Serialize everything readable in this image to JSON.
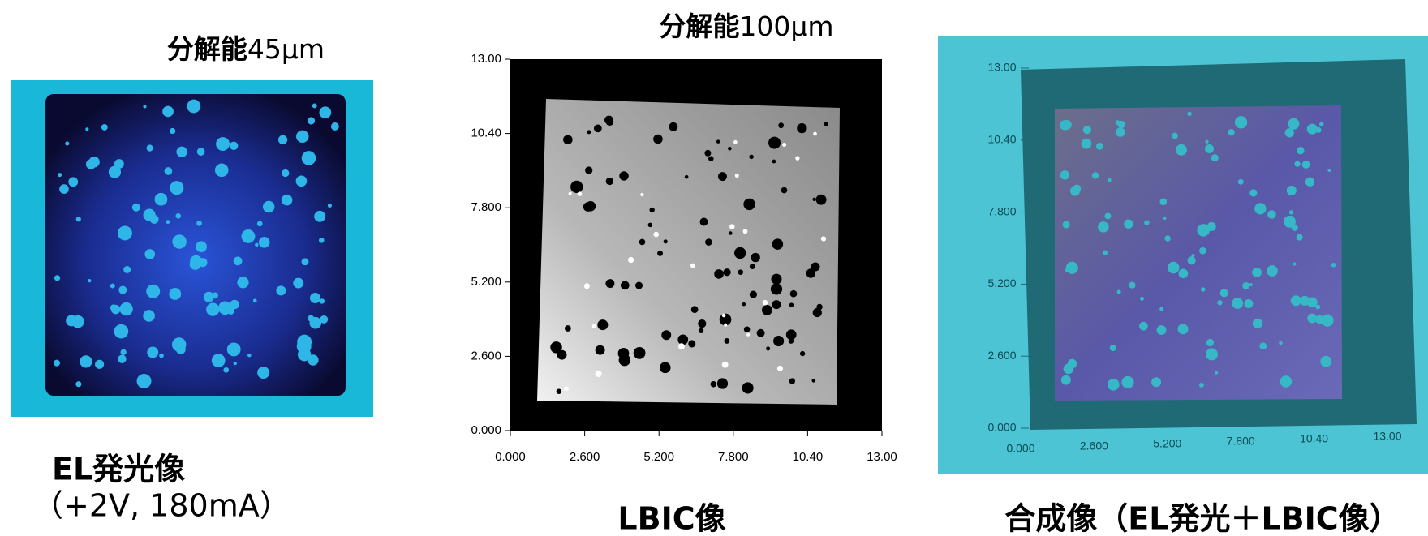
{
  "panels": [
    {
      "title_bold": "分解能",
      "title_rest": "45μm",
      "caption": [
        "EL発光像",
        "（+2V, 180mA）"
      ]
    },
    {
      "title_bold": "分解能",
      "title_rest": "100μm",
      "caption": [
        "LBIC像"
      ],
      "xticks": [
        "0.000",
        "2.600",
        "5.200",
        "7.800",
        "10.40",
        "13.00"
      ],
      "yticks": [
        "0.000",
        "2.600",
        "5.200",
        "7.800",
        "10.40",
        "13.00"
      ]
    },
    {
      "caption": [
        "合成像（EL発光＋LBIC像）"
      ],
      "xticks": [
        "0.000",
        "2.600",
        "5.200",
        "7.800",
        "10.40",
        "13.00"
      ],
      "yticks": [
        "0.000",
        "2.600",
        "5.200",
        "7.800",
        "10.40",
        "13.00"
      ]
    }
  ]
}
